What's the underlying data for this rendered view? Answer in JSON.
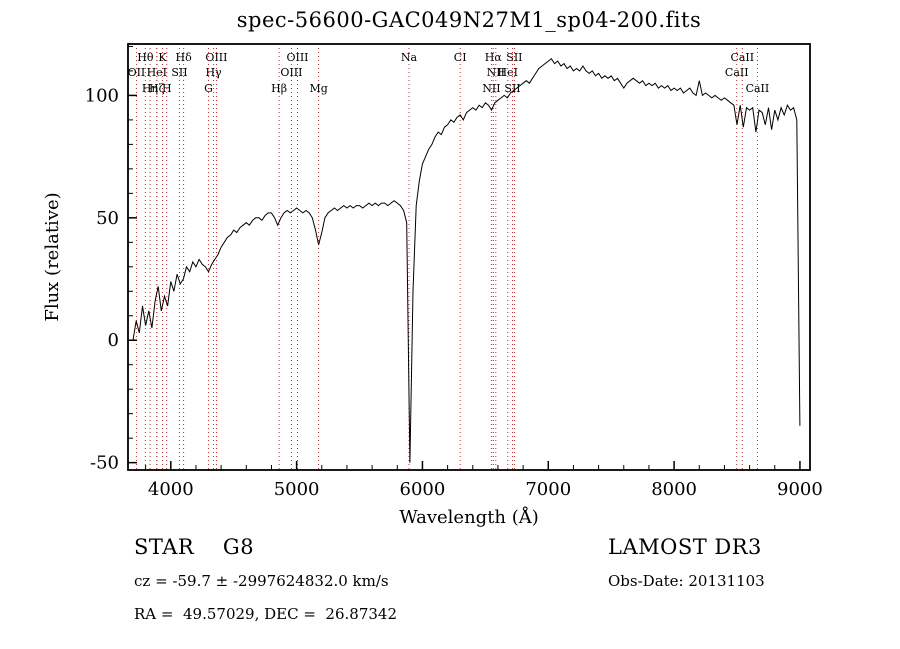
{
  "title": "spec-56600-GAC049N27M1_sp04-200.fits",
  "colors": {
    "background": "#ffffff",
    "spectrum": "#000000",
    "frame": "#000000",
    "marker_line": "#aa3333"
  },
  "chart_data": {
    "type": "line",
    "title": "spec-56600-GAC049N27M1_sp04-200.fits",
    "xlabel": "Wavelength (Å)",
    "ylabel": "Flux (relative)",
    "xlim": [
      3660,
      9080
    ],
    "ylim": [
      -53,
      121
    ],
    "x_ticks_major": [
      4000,
      5000,
      6000,
      7000,
      8000,
      9000
    ],
    "x_tick_minor_step": 200,
    "y_ticks_major": [
      -50,
      0,
      50,
      100
    ],
    "y_tick_minor_step": 10,
    "grid": false,
    "legend": "none",
    "series": [
      {
        "name": "spectrum-flux",
        "x_start": 3700,
        "x_step": 25,
        "values": [
          0,
          8,
          3,
          14,
          6,
          12,
          5,
          16,
          22,
          12,
          18,
          14,
          24,
          20,
          27,
          23,
          25,
          30,
          28,
          32,
          30,
          33,
          31,
          30,
          28,
          31,
          33,
          35,
          38,
          40,
          42,
          43,
          45,
          44,
          46,
          47,
          48,
          47,
          49,
          50,
          50,
          49,
          51,
          52,
          52,
          50,
          47,
          50,
          52,
          53,
          52,
          53,
          54,
          53,
          52,
          53,
          52,
          50,
          45,
          39,
          44,
          50,
          52,
          53,
          54,
          53,
          54,
          55,
          54,
          55,
          54,
          55,
          55,
          54,
          55,
          56,
          55,
          56,
          55,
          56,
          56,
          55,
          56,
          57,
          56,
          55,
          53,
          48,
          -50,
          20,
          55,
          65,
          72,
          75,
          78,
          80,
          83,
          85,
          84,
          87,
          88,
          90,
          89,
          91,
          92,
          90,
          93,
          94,
          95,
          94,
          96,
          95,
          97,
          96,
          94,
          97,
          98,
          99,
          100,
          99,
          101,
          102,
          103,
          104,
          105,
          106,
          105,
          107,
          109,
          111,
          112,
          113,
          114,
          115,
          113,
          114,
          112,
          113,
          111,
          112,
          110,
          111,
          110,
          112,
          110,
          109,
          110,
          108,
          109,
          107,
          108,
          107,
          108,
          106,
          107,
          105,
          103,
          105,
          106,
          107,
          106,
          105,
          106,
          104,
          105,
          104,
          105,
          103,
          104,
          103,
          104,
          102,
          103,
          102,
          103,
          101,
          102,
          103,
          101,
          100,
          106,
          100,
          101,
          100,
          99,
          100,
          99,
          98,
          99,
          98,
          97,
          96,
          88,
          96,
          87,
          95,
          94,
          95,
          85,
          94,
          93,
          88,
          95,
          86,
          94,
          90,
          95,
          92,
          96,
          94,
          95,
          90,
          -35
        ]
      }
    ],
    "spectral_lines": [
      {
        "label": "Hθ",
        "wavelength": 3798,
        "row": 0
      },
      {
        "label": "K",
        "wavelength": 3934,
        "row": 0
      },
      {
        "label": "Hδ",
        "wavelength": 4102,
        "row": 0
      },
      {
        "label": "OIII",
        "wavelength": 4363,
        "row": 0
      },
      {
        "label": "OIII",
        "wavelength": 5007,
        "row": 0
      },
      {
        "label": "Na",
        "wavelength": 5893,
        "row": 0
      },
      {
        "label": "CI",
        "wavelength": 6300,
        "row": 0
      },
      {
        "label": "Hα",
        "wavelength": 6563,
        "row": 0
      },
      {
        "label": "SII",
        "wavelength": 6731,
        "row": 0
      },
      {
        "label": "CaII",
        "wavelength": 8542,
        "row": 0
      },
      {
        "label": "OII",
        "wavelength": 3727,
        "row": 1
      },
      {
        "label": "HeI",
        "wavelength": 3889,
        "row": 1
      },
      {
        "label": "SII",
        "wavelength": 4069,
        "row": 1
      },
      {
        "label": "Hγ",
        "wavelength": 4340,
        "row": 1
      },
      {
        "label": "OIII",
        "wavelength": 4959,
        "row": 1
      },
      {
        "label": "NII",
        "wavelength": 6583,
        "row": 1
      },
      {
        "label": "HeI",
        "wavelength": 6678,
        "row": 1
      },
      {
        "label": "CaII",
        "wavelength": 8498,
        "row": 1
      },
      {
        "label": "Hη",
        "wavelength": 3835,
        "row": 2
      },
      {
        "label": "Hζ",
        "wavelength": 3889,
        "row": 2
      },
      {
        "label": "H",
        "wavelength": 3968,
        "row": 2
      },
      {
        "label": "G",
        "wavelength": 4300,
        "row": 2
      },
      {
        "label": "Hβ",
        "wavelength": 4861,
        "row": 2
      },
      {
        "label": "Mg",
        "wavelength": 5175,
        "row": 2
      },
      {
        "label": "NII",
        "wavelength": 6548,
        "row": 2
      },
      {
        "label": "SII",
        "wavelength": 6716,
        "row": 2
      },
      {
        "label": "CaII",
        "wavelength": 8662,
        "row": 2
      }
    ]
  },
  "footer": {
    "class_label": "STAR    G8",
    "survey": "LAMOST DR3",
    "cz": "cz = -59.7 ± -2997624832.0 km/s",
    "obs_date": "Obs-Date: 20131103",
    "coords": "RA =  49.57029, DEC =  26.87342"
  }
}
